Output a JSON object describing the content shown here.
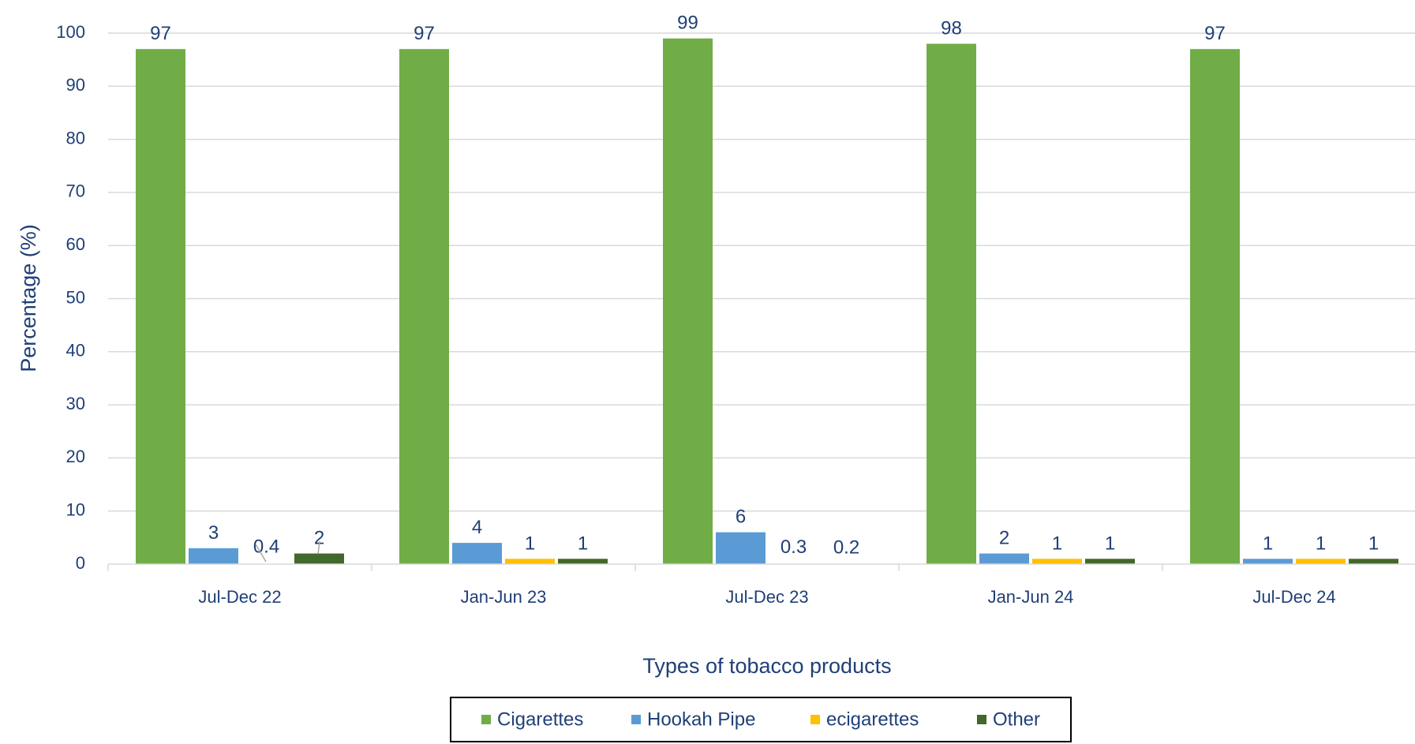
{
  "chart_data": {
    "type": "bar",
    "title": "",
    "xlabel": "Types of tobacco products",
    "ylabel": "Percentage (%)",
    "ylim": [
      0,
      100
    ],
    "yticks": [
      0,
      10,
      20,
      30,
      40,
      50,
      60,
      70,
      80,
      90,
      100
    ],
    "grid": true,
    "legend_position": "bottom",
    "categories": [
      "Jul-Dec 22",
      "Jan-Jun 23",
      "Jul-Dec 23",
      "Jan-Jun 24",
      "Jul-Dec 24"
    ],
    "series": [
      {
        "name": "Cigarettes",
        "color": "#70ad47",
        "values": [
          97,
          97,
          99,
          98,
          97
        ],
        "labels": [
          "97",
          "97",
          "99",
          "98",
          "97"
        ]
      },
      {
        "name": "Hookah Pipe",
        "color": "#5b9bd5",
        "values": [
          3,
          4,
          6,
          2,
          1
        ],
        "labels": [
          "3",
          "4",
          "6",
          "2",
          "1"
        ]
      },
      {
        "name": "ecigarettes",
        "color": "#ffc000",
        "values": [
          0.4,
          1,
          0.3,
          1,
          1
        ],
        "labels": [
          "0.4",
          "1",
          "0.3",
          "1",
          "1"
        ]
      },
      {
        "name": "Other",
        "color": "#43682b",
        "values": [
          2,
          1,
          0.2,
          1,
          1
        ],
        "labels": [
          "2",
          "1",
          "0.2",
          "1",
          "1"
        ]
      }
    ]
  }
}
